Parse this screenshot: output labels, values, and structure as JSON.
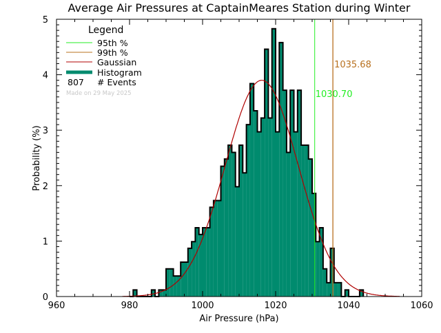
{
  "chart_data": {
    "type": "bar",
    "title": "Average Air Pressures at CaptainMeares Station during Winter",
    "xlabel": "Air Pressure (hPa)",
    "ylabel": "Probability (%)",
    "xlim": [
      960,
      1060
    ],
    "ylim": [
      0,
      5
    ],
    "x_ticks": [
      "960",
      "980",
      "1000",
      "1020",
      "1040",
      "1060"
    ],
    "y_ticks": [
      "0",
      "1",
      "2",
      "3",
      "4",
      "5"
    ],
    "bin_width": 1,
    "bin_starts": [
      980,
      981,
      982,
      983,
      984,
      985,
      986,
      987,
      988,
      989,
      990,
      991,
      992,
      993,
      994,
      995,
      996,
      997,
      998,
      999,
      1000,
      1001,
      1002,
      1003,
      1004,
      1005,
      1006,
      1007,
      1008,
      1009,
      1010,
      1011,
      1012,
      1013,
      1014,
      1015,
      1016,
      1017,
      1018,
      1019,
      1020,
      1021,
      1022,
      1023,
      1024,
      1025,
      1026,
      1027,
      1028,
      1029,
      1030,
      1031,
      1032,
      1033,
      1034,
      1035,
      1036,
      1037,
      1038,
      1039,
      1040,
      1041,
      1042,
      1043
    ],
    "values": [
      0,
      0.12,
      0,
      0,
      0,
      0,
      0.12,
      0,
      0.12,
      0.12,
      0.5,
      0.5,
      0.37,
      0.37,
      0.62,
      0.62,
      0.87,
      0.99,
      1.24,
      1.12,
      1.24,
      1.24,
      1.61,
      1.73,
      1.73,
      2.35,
      2.48,
      2.73,
      2.6,
      1.98,
      2.73,
      2.23,
      3.1,
      3.84,
      3.35,
      2.97,
      3.22,
      4.46,
      3.22,
      4.83,
      2.97,
      4.58,
      3.72,
      2.6,
      3.72,
      2.97,
      3.72,
      2.73,
      2.73,
      2.48,
      1.86,
      0.99,
      1.24,
      0.5,
      0.25,
      0.87,
      0.25,
      0.25,
      0,
      0.12,
      0,
      0,
      0,
      0.12
    ],
    "gaussian": {
      "mean": 1016.2,
      "sd": 10.0,
      "peak": 3.9
    },
    "percentile_95": 1030.7,
    "percentile_99": 1035.68,
    "percentile_95_label": "1030.70",
    "percentile_99_label": "1035.68",
    "legend": {
      "title": "Legend",
      "items": [
        "95th %",
        "99th %",
        "Gaussian",
        "Histogram"
      ],
      "events_count": "807",
      "events_label": "# Events",
      "made_on": "Made on 29 May 2025",
      "placement": "top-left"
    },
    "colors": {
      "histogram": "#008b6e",
      "gaussian": "#b00000",
      "p95": "#22ee22",
      "p99": "#b8701e",
      "p95_text": "#22ee22",
      "p99_text": "#b8701e"
    }
  }
}
